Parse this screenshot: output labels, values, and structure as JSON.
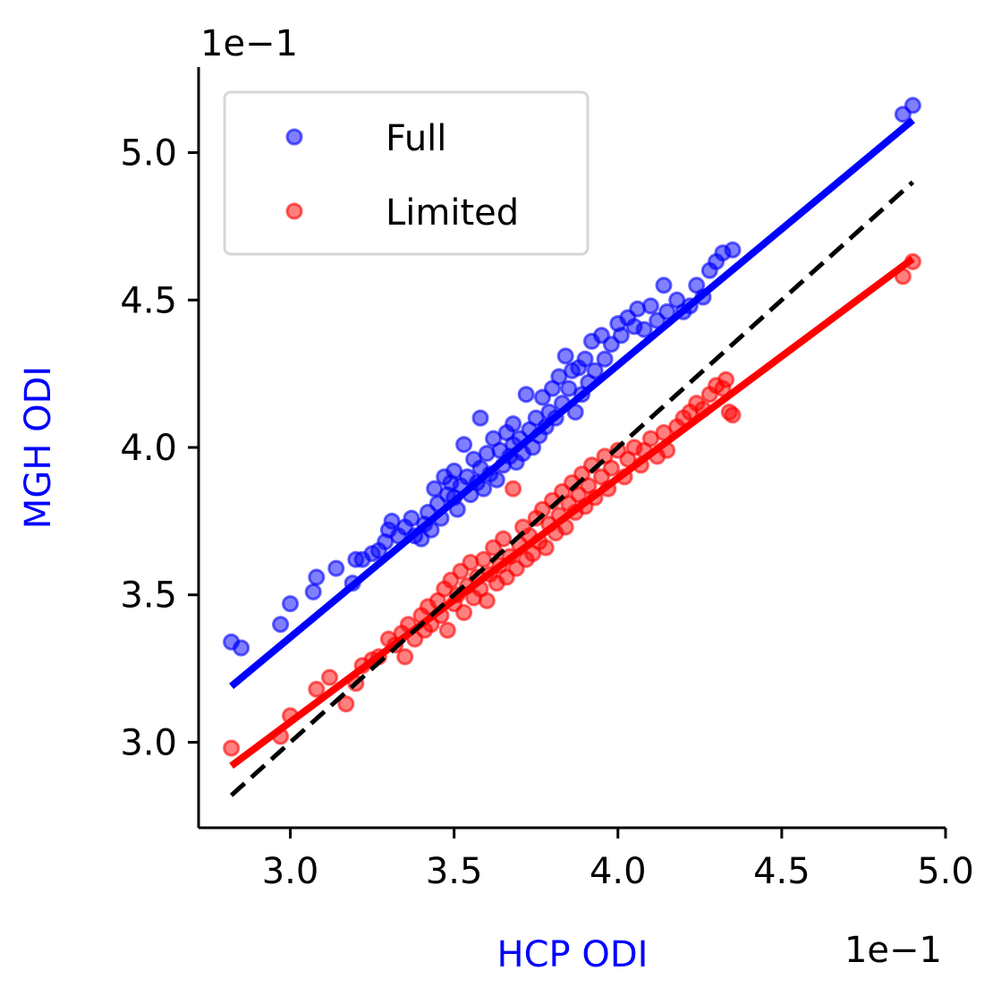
{
  "chart_data": {
    "type": "scatter",
    "xlabel": "HCP ODI",
    "ylabel": "MGH ODI",
    "x_offset_label": "1e−1",
    "y_offset_label": "1e−1",
    "xlim": [
      2.72,
      5.0
    ],
    "ylim": [
      2.71,
      5.29
    ],
    "x_ticks": [
      3.0,
      3.5,
      4.0,
      4.5,
      5.0
    ],
    "x_tick_labels": [
      "3.0",
      "3.5",
      "4.0",
      "4.5",
      "5.0"
    ],
    "y_ticks": [
      3.0,
      3.5,
      4.0,
      4.5,
      5.0
    ],
    "y_tick_labels": [
      "3.0",
      "3.5",
      "4.0",
      "4.5",
      "5.0"
    ],
    "grid": false,
    "legend_position": "top-left",
    "label_color": "#0000ff",
    "series": [
      {
        "name": "Full",
        "color": "#0000ff",
        "fit": {
          "x": [
            2.82,
            4.9
          ],
          "y": [
            3.19,
            5.11
          ]
        },
        "points": [
          [
            2.82,
            3.34
          ],
          [
            2.85,
            3.32
          ],
          [
            2.97,
            3.4
          ],
          [
            3.0,
            3.47
          ],
          [
            3.07,
            3.51
          ],
          [
            3.08,
            3.56
          ],
          [
            3.14,
            3.59
          ],
          [
            3.19,
            3.54
          ],
          [
            3.2,
            3.62
          ],
          [
            3.22,
            3.62
          ],
          [
            3.25,
            3.64
          ],
          [
            3.27,
            3.65
          ],
          [
            3.29,
            3.68
          ],
          [
            3.3,
            3.72
          ],
          [
            3.31,
            3.75
          ],
          [
            3.33,
            3.7
          ],
          [
            3.35,
            3.73
          ],
          [
            3.37,
            3.76
          ],
          [
            3.38,
            3.7
          ],
          [
            3.4,
            3.69
          ],
          [
            3.41,
            3.74
          ],
          [
            3.42,
            3.78
          ],
          [
            3.43,
            3.72
          ],
          [
            3.44,
            3.86
          ],
          [
            3.45,
            3.81
          ],
          [
            3.46,
            3.76
          ],
          [
            3.47,
            3.9
          ],
          [
            3.48,
            3.84
          ],
          [
            3.49,
            3.88
          ],
          [
            3.5,
            3.83
          ],
          [
            3.5,
            3.92
          ],
          [
            3.51,
            3.79
          ],
          [
            3.52,
            3.87
          ],
          [
            3.53,
            4.01
          ],
          [
            3.54,
            3.9
          ],
          [
            3.55,
            3.84
          ],
          [
            3.56,
            3.96
          ],
          [
            3.57,
            3.88
          ],
          [
            3.58,
            3.93
          ],
          [
            3.58,
            4.1
          ],
          [
            3.59,
            3.86
          ],
          [
            3.6,
            3.98
          ],
          [
            3.61,
            3.91
          ],
          [
            3.62,
            4.03
          ],
          [
            3.63,
            3.89
          ],
          [
            3.64,
            3.99
          ],
          [
            3.65,
            3.94
          ],
          [
            3.66,
            4.05
          ],
          [
            3.67,
            3.97
          ],
          [
            3.68,
            4.01
          ],
          [
            3.68,
            4.08
          ],
          [
            3.69,
            3.95
          ],
          [
            3.7,
            4.03
          ],
          [
            3.71,
            3.98
          ],
          [
            3.72,
            4.18
          ],
          [
            3.73,
            4.06
          ],
          [
            3.74,
            4.0
          ],
          [
            3.75,
            4.1
          ],
          [
            3.76,
            4.04
          ],
          [
            3.77,
            4.17
          ],
          [
            3.78,
            4.07
          ],
          [
            3.79,
            4.12
          ],
          [
            3.8,
            4.2
          ],
          [
            3.81,
            4.1
          ],
          [
            3.82,
            4.24
          ],
          [
            3.83,
            4.15
          ],
          [
            3.84,
            4.31
          ],
          [
            3.85,
            4.2
          ],
          [
            3.86,
            4.26
          ],
          [
            3.87,
            4.12
          ],
          [
            3.88,
            4.27
          ],
          [
            3.89,
            4.18
          ],
          [
            3.9,
            4.3
          ],
          [
            3.91,
            4.22
          ],
          [
            3.92,
            4.36
          ],
          [
            3.93,
            4.26
          ],
          [
            3.95,
            4.38
          ],
          [
            3.96,
            4.3
          ],
          [
            3.98,
            4.35
          ],
          [
            4.0,
            4.42
          ],
          [
            4.01,
            4.38
          ],
          [
            4.03,
            4.44
          ],
          [
            4.05,
            4.41
          ],
          [
            4.06,
            4.47
          ],
          [
            4.08,
            4.4
          ],
          [
            4.1,
            4.48
          ],
          [
            4.12,
            4.43
          ],
          [
            4.14,
            4.55
          ],
          [
            4.15,
            4.46
          ],
          [
            4.18,
            4.5
          ],
          [
            4.2,
            4.46
          ],
          [
            4.22,
            4.48
          ],
          [
            4.24,
            4.55
          ],
          [
            4.26,
            4.51
          ],
          [
            4.28,
            4.6
          ],
          [
            4.3,
            4.63
          ],
          [
            4.32,
            4.66
          ],
          [
            4.35,
            4.67
          ],
          [
            4.87,
            5.13
          ],
          [
            4.9,
            5.16
          ]
        ]
      },
      {
        "name": "Limited",
        "color": "#ff0000",
        "fit": {
          "x": [
            2.82,
            4.9
          ],
          "y": [
            2.92,
            4.64
          ]
        },
        "points": [
          [
            2.82,
            2.98
          ],
          [
            2.97,
            3.02
          ],
          [
            3.0,
            3.09
          ],
          [
            3.08,
            3.18
          ],
          [
            3.12,
            3.22
          ],
          [
            3.17,
            3.13
          ],
          [
            3.2,
            3.2
          ],
          [
            3.22,
            3.26
          ],
          [
            3.25,
            3.28
          ],
          [
            3.27,
            3.29
          ],
          [
            3.3,
            3.35
          ],
          [
            3.32,
            3.33
          ],
          [
            3.34,
            3.37
          ],
          [
            3.35,
            3.29
          ],
          [
            3.36,
            3.4
          ],
          [
            3.38,
            3.35
          ],
          [
            3.4,
            3.43
          ],
          [
            3.41,
            3.38
          ],
          [
            3.42,
            3.46
          ],
          [
            3.43,
            3.4
          ],
          [
            3.45,
            3.48
          ],
          [
            3.46,
            3.43
          ],
          [
            3.47,
            3.52
          ],
          [
            3.48,
            3.38
          ],
          [
            3.49,
            3.55
          ],
          [
            3.5,
            3.47
          ],
          [
            3.51,
            3.5
          ],
          [
            3.52,
            3.58
          ],
          [
            3.53,
            3.44
          ],
          [
            3.54,
            3.53
          ],
          [
            3.55,
            3.61
          ],
          [
            3.56,
            3.49
          ],
          [
            3.57,
            3.56
          ],
          [
            3.58,
            3.52
          ],
          [
            3.59,
            3.62
          ],
          [
            3.6,
            3.48
          ],
          [
            3.61,
            3.57
          ],
          [
            3.62,
            3.66
          ],
          [
            3.63,
            3.54
          ],
          [
            3.64,
            3.6
          ],
          [
            3.65,
            3.69
          ],
          [
            3.66,
            3.56
          ],
          [
            3.67,
            3.63
          ],
          [
            3.68,
            3.86
          ],
          [
            3.69,
            3.59
          ],
          [
            3.7,
            3.67
          ],
          [
            3.71,
            3.73
          ],
          [
            3.72,
            3.62
          ],
          [
            3.73,
            3.7
          ],
          [
            3.74,
            3.64
          ],
          [
            3.75,
            3.76
          ],
          [
            3.76,
            3.68
          ],
          [
            3.77,
            3.79
          ],
          [
            3.78,
            3.66
          ],
          [
            3.79,
            3.74
          ],
          [
            3.8,
            3.82
          ],
          [
            3.81,
            3.71
          ],
          [
            3.82,
            3.77
          ],
          [
            3.83,
            3.85
          ],
          [
            3.84,
            3.73
          ],
          [
            3.85,
            3.81
          ],
          [
            3.86,
            3.88
          ],
          [
            3.87,
            3.78
          ],
          [
            3.88,
            3.84
          ],
          [
            3.89,
            3.91
          ],
          [
            3.9,
            3.8
          ],
          [
            3.91,
            3.87
          ],
          [
            3.92,
            3.94
          ],
          [
            3.93,
            3.83
          ],
          [
            3.95,
            3.9
          ],
          [
            3.96,
            3.97
          ],
          [
            3.97,
            3.86
          ],
          [
            3.98,
            3.93
          ],
          [
            4.0,
            3.99
          ],
          [
            4.02,
            3.9
          ],
          [
            4.03,
            3.96
          ],
          [
            4.05,
            4.0
          ],
          [
            4.07,
            3.94
          ],
          [
            4.08,
            3.99
          ],
          [
            4.1,
            4.03
          ],
          [
            4.12,
            3.97
          ],
          [
            4.14,
            4.05
          ],
          [
            4.15,
            3.99
          ],
          [
            4.18,
            4.07
          ],
          [
            4.2,
            4.1
          ],
          [
            4.22,
            4.12
          ],
          [
            4.24,
            4.15
          ],
          [
            4.26,
            4.13
          ],
          [
            4.28,
            4.18
          ],
          [
            4.3,
            4.21
          ],
          [
            4.32,
            4.2
          ],
          [
            4.34,
            4.12
          ],
          [
            4.35,
            4.11
          ],
          [
            4.33,
            4.23
          ],
          [
            4.87,
            4.58
          ],
          [
            4.9,
            4.63
          ]
        ]
      }
    ],
    "identity_line": {
      "color": "#000000",
      "x": [
        2.82,
        4.9
      ],
      "y": [
        2.82,
        4.9
      ]
    }
  }
}
